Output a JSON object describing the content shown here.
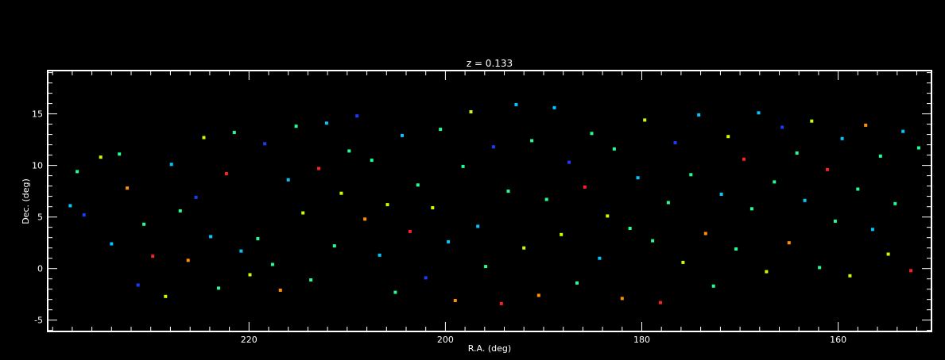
{
  "chart_data": {
    "type": "scatter",
    "title": "z = 0.133",
    "xlabel": "R.A. (deg)",
    "ylabel": "Dec. (deg)",
    "xlim": [
      240.5,
      150.5
    ],
    "ylim": [
      -6.1,
      19.2
    ],
    "x_ticks": [
      220,
      200,
      180,
      160
    ],
    "x_tick_labels": [
      "220",
      "200",
      "180",
      "160"
    ],
    "x_minor_step": 2,
    "y_ticks": [
      -5,
      0,
      5,
      10,
      15
    ],
    "y_tick_labels": [
      "-5",
      "0",
      "5",
      "10",
      "15"
    ],
    "y_minor_step": 1,
    "grid": false,
    "legend": "none",
    "background": "#000000",
    "foreground": "#ffffff",
    "color_scale": [
      "#3b00b0",
      "#1a3cff",
      "#00c8ff",
      "#20ff90",
      "#c8ff00",
      "#ff9000",
      "#ff2020"
    ],
    "points": [
      [
        238.2,
        6.1,
        2
      ],
      [
        237.5,
        9.4,
        3
      ],
      [
        236.8,
        5.2,
        1
      ],
      [
        235.1,
        10.8,
        4
      ],
      [
        234.0,
        2.4,
        2
      ],
      [
        233.2,
        11.1,
        3
      ],
      [
        232.4,
        7.8,
        5
      ],
      [
        231.3,
        -1.6,
        1
      ],
      [
        230.7,
        4.3,
        3
      ],
      [
        229.8,
        1.2,
        6
      ],
      [
        228.5,
        -2.7,
        4
      ],
      [
        227.9,
        10.1,
        2
      ],
      [
        227.0,
        5.6,
        3
      ],
      [
        226.2,
        0.8,
        5
      ],
      [
        225.4,
        6.9,
        1
      ],
      [
        224.6,
        12.7,
        4
      ],
      [
        223.9,
        3.1,
        2
      ],
      [
        223.1,
        -1.9,
        3
      ],
      [
        222.3,
        9.2,
        6
      ],
      [
        221.5,
        13.2,
        3
      ],
      [
        220.8,
        1.7,
        2
      ],
      [
        219.9,
        -0.6,
        4
      ],
      [
        219.1,
        2.9,
        3
      ],
      [
        218.4,
        12.1,
        1
      ],
      [
        217.6,
        0.4,
        3
      ],
      [
        216.8,
        -2.1,
        5
      ],
      [
        216.0,
        8.6,
        2
      ],
      [
        215.2,
        13.8,
        3
      ],
      [
        214.5,
        5.4,
        4
      ],
      [
        213.7,
        -1.1,
        3
      ],
      [
        212.9,
        9.7,
        6
      ],
      [
        212.1,
        14.1,
        2
      ],
      [
        211.3,
        2.2,
        3
      ],
      [
        210.6,
        7.3,
        4
      ],
      [
        209.8,
        11.4,
        3
      ],
      [
        209.0,
        14.8,
        1
      ],
      [
        208.2,
        4.8,
        5
      ],
      [
        207.5,
        10.5,
        3
      ],
      [
        206.7,
        1.3,
        2
      ],
      [
        205.9,
        6.2,
        4
      ],
      [
        205.1,
        -2.3,
        3
      ],
      [
        204.4,
        12.9,
        2
      ],
      [
        203.6,
        3.6,
        6
      ],
      [
        202.8,
        8.1,
        3
      ],
      [
        202.0,
        -0.9,
        1
      ],
      [
        201.3,
        5.9,
        4
      ],
      [
        200.5,
        13.5,
        3
      ],
      [
        199.7,
        2.6,
        2
      ],
      [
        199.0,
        -3.1,
        5
      ],
      [
        198.2,
        9.9,
        3
      ],
      [
        197.4,
        15.2,
        4
      ],
      [
        196.7,
        4.1,
        2
      ],
      [
        195.9,
        0.2,
        3
      ],
      [
        195.1,
        11.8,
        1
      ],
      [
        194.3,
        -3.4,
        6
      ],
      [
        193.6,
        7.5,
        3
      ],
      [
        192.8,
        15.9,
        2
      ],
      [
        192.0,
        2.0,
        4
      ],
      [
        191.2,
        12.4,
        3
      ],
      [
        190.5,
        -2.6,
        5
      ],
      [
        189.7,
        6.7,
        3
      ],
      [
        188.9,
        15.6,
        2
      ],
      [
        188.2,
        3.3,
        4
      ],
      [
        187.4,
        10.3,
        1
      ],
      [
        186.6,
        -1.4,
        3
      ],
      [
        185.8,
        7.9,
        6
      ],
      [
        185.1,
        13.1,
        3
      ],
      [
        184.3,
        1.0,
        2
      ],
      [
        183.5,
        5.1,
        4
      ],
      [
        182.8,
        11.6,
        3
      ],
      [
        182.0,
        -2.9,
        5
      ],
      [
        181.2,
        3.9,
        3
      ],
      [
        180.4,
        8.8,
        2
      ],
      [
        179.7,
        14.4,
        4
      ],
      [
        178.9,
        2.7,
        3
      ],
      [
        178.1,
        -3.3,
        6
      ],
      [
        177.3,
        6.4,
        3
      ],
      [
        176.6,
        12.2,
        1
      ],
      [
        175.8,
        0.6,
        4
      ],
      [
        175.0,
        9.1,
        3
      ],
      [
        174.2,
        14.9,
        2
      ],
      [
        173.5,
        3.4,
        5
      ],
      [
        172.7,
        -1.7,
        3
      ],
      [
        171.9,
        7.2,
        2
      ],
      [
        171.2,
        12.8,
        4
      ],
      [
        170.4,
        1.9,
        3
      ],
      [
        169.6,
        10.6,
        6
      ],
      [
        168.8,
        5.8,
        3
      ],
      [
        168.1,
        15.1,
        2
      ],
      [
        167.3,
        -0.3,
        4
      ],
      [
        166.5,
        8.4,
        3
      ],
      [
        165.7,
        13.7,
        1
      ],
      [
        165.0,
        2.5,
        5
      ],
      [
        164.2,
        11.2,
        3
      ],
      [
        163.4,
        6.6,
        2
      ],
      [
        162.7,
        14.3,
        4
      ],
      [
        161.9,
        0.1,
        3
      ],
      [
        161.1,
        9.6,
        6
      ],
      [
        160.3,
        4.6,
        3
      ],
      [
        159.6,
        12.6,
        2
      ],
      [
        158.8,
        -0.7,
        4
      ],
      [
        158.0,
        7.7,
        3
      ],
      [
        157.2,
        13.9,
        5
      ],
      [
        156.5,
        3.8,
        2
      ],
      [
        155.7,
        10.9,
        3
      ],
      [
        154.9,
        1.4,
        4
      ],
      [
        154.2,
        6.3,
        3
      ],
      [
        153.4,
        13.3,
        2
      ],
      [
        152.6,
        -0.2,
        6
      ],
      [
        151.8,
        11.7,
        3
      ]
    ]
  }
}
